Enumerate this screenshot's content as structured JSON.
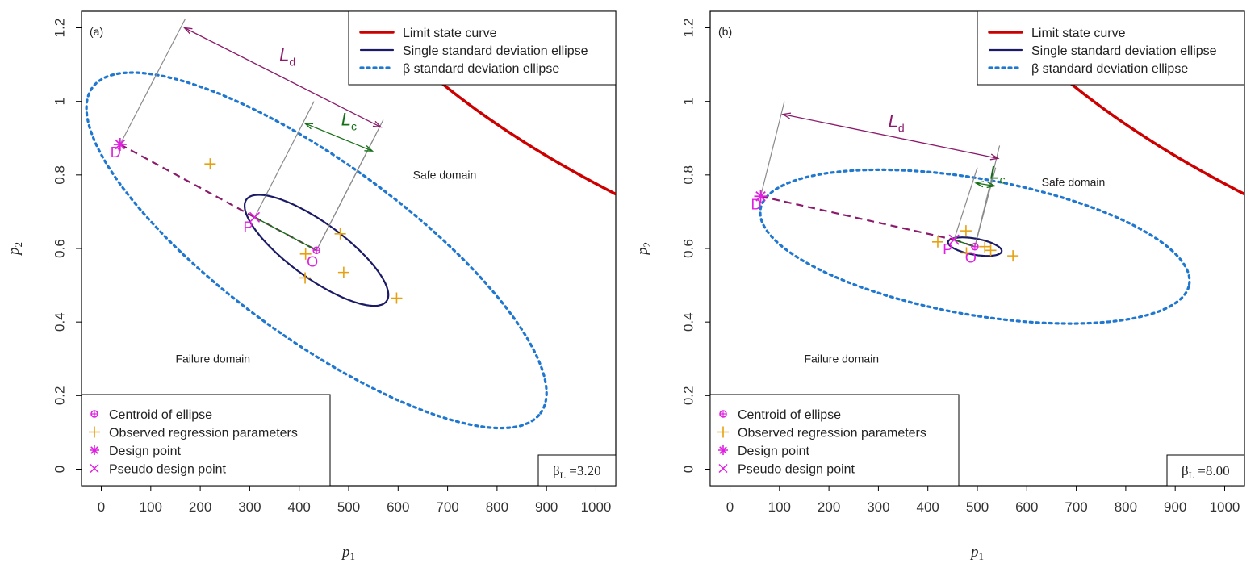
{
  "chart_data": [
    {
      "type": "line",
      "panel_label": "(a)",
      "xlabel": "p",
      "xlabel_sub": "1",
      "ylabel": "p",
      "ylabel_sub": "2",
      "xlim": [
        -40,
        1040
      ],
      "ylim": [
        -0.045,
        1.245
      ],
      "xticks": [
        0,
        100,
        200,
        300,
        400,
        500,
        600,
        700,
        800,
        900,
        1000
      ],
      "yticks": [
        0,
        0.2,
        0.4,
        0.6,
        0.8,
        1,
        1.2
      ],
      "ytick_labels": [
        "0",
        "0.2",
        "0.4",
        "0.6",
        "0.8",
        "1",
        "1.2"
      ],
      "legend_lines": [
        "Limit state curve",
        "Single standard deviation ellipse",
        "β standard deviation ellipse"
      ],
      "legend_points": [
        "Centroid of ellipse",
        "Observed regression parameters",
        "Design point",
        "Pseudo design point"
      ],
      "failure_label": "Failure domain",
      "safe_label": "Safe domain",
      "beta_symbol": "β",
      "beta_sub": "L",
      "beta_value": " =3.20",
      "point_labels": {
        "design": "D",
        "pseudo": "P",
        "centroid": "O"
      },
      "ld_label": "L",
      "ld_sub": "d",
      "lc_label": "L",
      "lc_sub": "c",
      "limit_state_k": 31.5,
      "centroid": [
        435,
        0.595
      ],
      "design_point": [
        38,
        0.883
      ],
      "pseudo_point": [
        310,
        0.685
      ],
      "ellipse1": {
        "center": [
          435,
          0.595
        ],
        "a": 175,
        "b": 0.075,
        "angle": -36
      },
      "ellipse2": {
        "center": [
          435,
          0.595
        ],
        "a": 560,
        "b": 0.24,
        "angle": -36
      },
      "observed": [
        [
          220,
          0.83
        ],
        [
          483,
          0.64
        ],
        [
          413,
          0.585
        ],
        [
          490,
          0.535
        ],
        [
          412,
          0.52
        ],
        [
          597,
          0.465
        ]
      ],
      "ld_lines": [
        [
          38,
          0.883,
          170,
          1.225
        ],
        [
          435,
          0.595,
          570,
          0.95
        ]
      ],
      "lc_lines": [
        [
          310,
          0.685,
          430,
          1.0
        ],
        [
          435,
          0.595,
          555,
          0.91
        ]
      ],
      "ld_arrow": [
        168,
        1.2,
        565,
        0.93
      ],
      "lc_arrow": [
        412,
        0.94,
        548,
        0.865
      ],
      "ld_text_pos": [
        360,
        1.11
      ],
      "lc_text_pos": [
        485,
        0.935
      ],
      "failure_pos": [
        150,
        0.29
      ],
      "safe_pos": [
        630,
        0.79
      ]
    },
    {
      "type": "line",
      "panel_label": "(b)",
      "xlabel": "p",
      "xlabel_sub": "1",
      "ylabel": "p",
      "ylabel_sub": "2",
      "xlim": [
        -40,
        1040
      ],
      "ylim": [
        -0.045,
        1.245
      ],
      "xticks": [
        0,
        100,
        200,
        300,
        400,
        500,
        600,
        700,
        800,
        900,
        1000
      ],
      "yticks": [
        0,
        0.2,
        0.4,
        0.6,
        0.8,
        1,
        1.2
      ],
      "ytick_labels": [
        "0",
        "0.2",
        "0.4",
        "0.6",
        "0.8",
        "1",
        "1.2"
      ],
      "legend_lines": [
        "Limit state curve",
        "Single standard deviation ellipse",
        "β standard deviation ellipse"
      ],
      "legend_points": [
        "Centroid of ellipse",
        "Observed regression parameters",
        "Design point",
        "Pseudo design point"
      ],
      "failure_label": "Failure domain",
      "safe_label": "Safe domain",
      "beta_symbol": "β",
      "beta_sub": "L",
      "beta_value": " =8.00",
      "point_labels": {
        "design": "D",
        "pseudo": "P",
        "centroid": "O"
      },
      "ld_label": "L",
      "ld_sub": "d",
      "lc_label": "L",
      "lc_sub": "c",
      "limit_state_k": 31.5,
      "centroid": [
        495,
        0.605
      ],
      "design_point": [
        62,
        0.742
      ],
      "pseudo_point": [
        453,
        0.624
      ],
      "ellipse1": {
        "center": [
          495,
          0.605
        ],
        "a": 55,
        "b": 0.022,
        "angle": -10
      },
      "ellipse2": {
        "center": [
          495,
          0.605
        ],
        "a": 440,
        "b": 0.185,
        "angle": -10
      },
      "observed": [
        [
          420,
          0.618
        ],
        [
          477,
          0.648
        ],
        [
          515,
          0.605
        ],
        [
          527,
          0.595
        ],
        [
          478,
          0.588
        ],
        [
          572,
          0.58
        ]
      ],
      "ld_lines": [
        [
          62,
          0.742,
          110,
          1.0
        ],
        [
          495,
          0.605,
          545,
          0.88
        ]
      ],
      "lc_lines": [
        [
          453,
          0.624,
          500,
          0.82
        ],
        [
          495,
          0.605,
          537,
          0.82
        ]
      ],
      "ld_arrow": [
        107,
        0.965,
        542,
        0.845
      ],
      "lc_arrow": [
        497,
        0.778,
        535,
        0.77
      ],
      "ld_text_pos": [
        320,
        0.93
      ],
      "lc_text_pos": [
        525,
        0.79
      ],
      "failure_pos": [
        150,
        0.29
      ],
      "safe_pos": [
        630,
        0.77
      ]
    }
  ]
}
